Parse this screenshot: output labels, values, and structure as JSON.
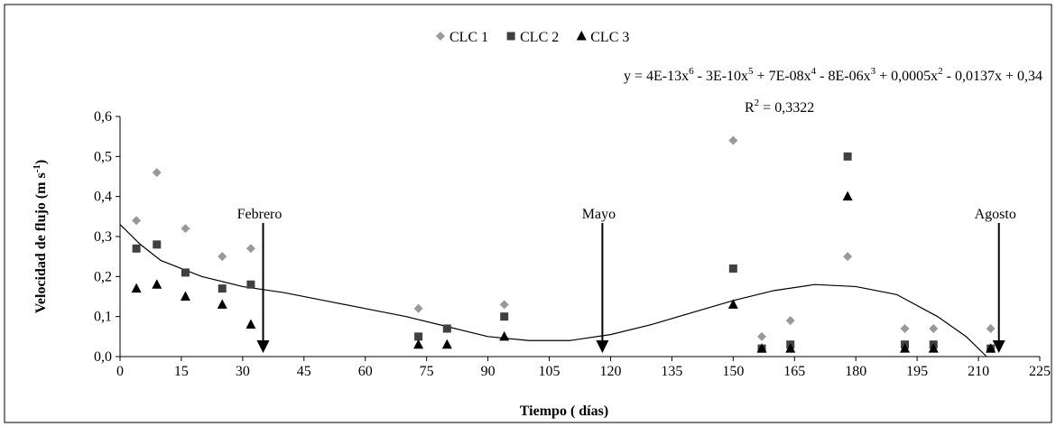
{
  "chart_data": {
    "type": "scatter",
    "xlabel": "Tiempo ( días)",
    "ylabel": [
      "Velocidad de flujo (m s",
      "-1",
      ")"
    ],
    "xlim": [
      0,
      225
    ],
    "xticks": [
      0,
      15,
      30,
      45,
      60,
      75,
      90,
      105,
      120,
      135,
      150,
      165,
      180,
      195,
      210,
      225
    ],
    "ylim": [
      0,
      0.6
    ],
    "yticks": [
      {
        "value": 0,
        "label": "0,0"
      },
      {
        "value": 0.1,
        "label": "0,1"
      },
      {
        "value": 0.2,
        "label": "0,2"
      },
      {
        "value": 0.3,
        "label": "0,3"
      },
      {
        "value": 0.4,
        "label": "0,4"
      },
      {
        "value": 0.5,
        "label": "0,5"
      },
      {
        "value": 0.6,
        "label": "0,6"
      }
    ],
    "grid": false,
    "legend": "top",
    "x": [
      4,
      9,
      16,
      25,
      32,
      73,
      80,
      94,
      150,
      157,
      164,
      178,
      192,
      199,
      213
    ],
    "series": [
      {
        "name": "CLC 1",
        "color": "#999999",
        "marker": "diamond",
        "values": [
          0.34,
          0.46,
          0.32,
          0.25,
          0.27,
          0.12,
          0.07,
          0.13,
          0.54,
          0.05,
          0.09,
          0.25,
          0.07,
          0.07,
          0.07
        ]
      },
      {
        "name": "CLC 2",
        "color": "#404040",
        "marker": "square",
        "values": [
          0.27,
          0.28,
          0.21,
          0.17,
          0.18,
          0.05,
          0.07,
          0.1,
          0.22,
          0.02,
          0.03,
          0.5,
          0.03,
          0.03,
          0.02
        ]
      },
      {
        "name": "CLC 3",
        "color": "#000000",
        "marker": "triangle",
        "values": [
          0.17,
          0.18,
          0.15,
          0.13,
          0.08,
          0.03,
          0.03,
          0.05,
          0.13,
          0.02,
          0.02,
          0.4,
          0.02,
          0.02,
          0.02
        ]
      }
    ],
    "trendline": {
      "color": "#000000",
      "x": [
        0,
        5,
        10,
        20,
        30,
        40,
        50,
        60,
        70,
        80,
        90,
        100,
        110,
        120,
        130,
        140,
        150,
        160,
        170,
        180,
        190,
        200,
        207,
        212
      ],
      "values": [
        0.33,
        0.28,
        0.24,
        0.2,
        0.175,
        0.16,
        0.14,
        0.12,
        0.1,
        0.075,
        0.05,
        0.04,
        0.04,
        0.055,
        0.08,
        0.11,
        0.14,
        0.165,
        0.18,
        0.175,
        0.155,
        0.1,
        0.05,
        0
      ]
    },
    "equation": [
      "y = 4E-13x",
      "6",
      " - 3E-10x",
      "5",
      " + 7E-08x",
      "4",
      " - 8E-06x",
      "3",
      " + 0,0005x",
      "2",
      " - 0,0137x + 0,34"
    ],
    "r2": [
      "R",
      "2",
      " = 0,3322"
    ],
    "annotations": [
      {
        "text": "Febrero",
        "x": 35
      },
      {
        "text": "Mayo",
        "x": 118
      },
      {
        "text": "Agosto",
        "x": 215
      }
    ]
  }
}
